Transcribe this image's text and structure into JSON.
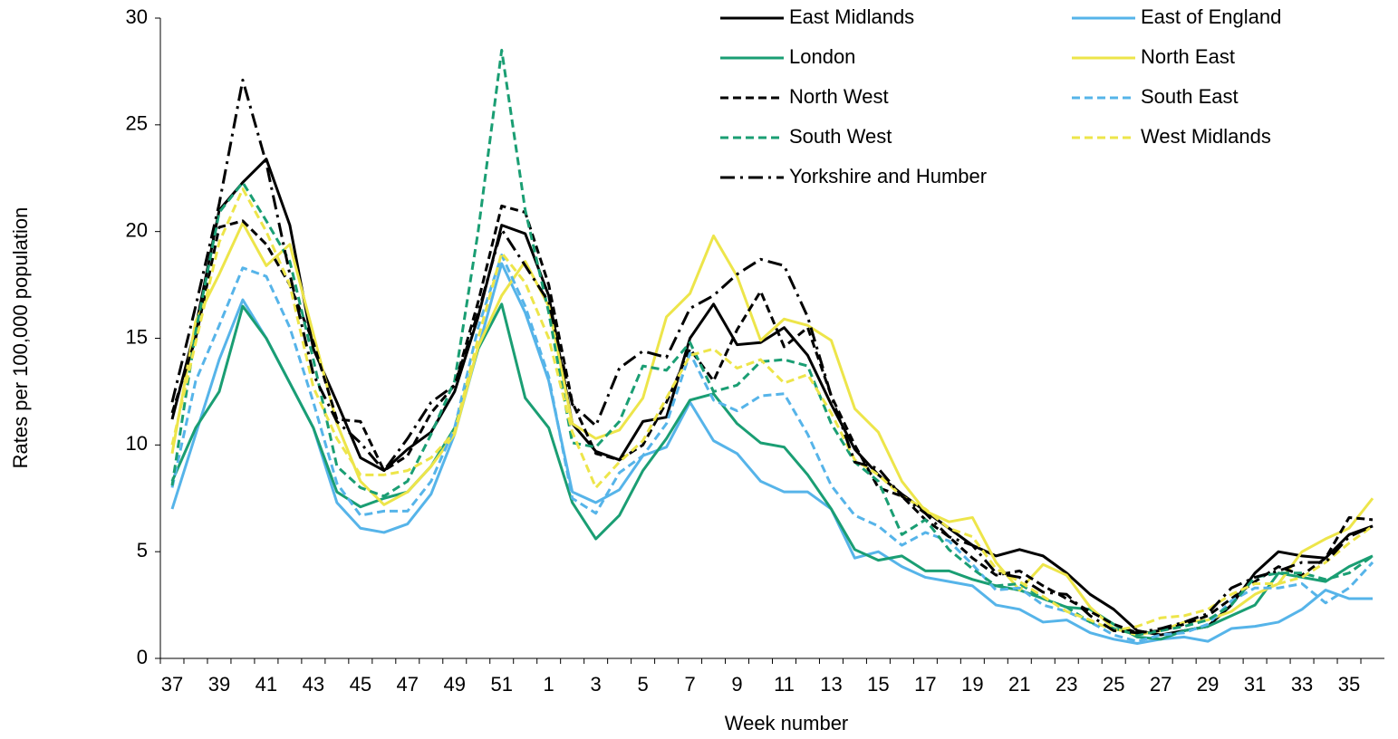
{
  "chart_data": {
    "type": "line",
    "x_label": "Week number",
    "y_label": "Rates per 100,000 population",
    "categories": [
      37,
      null,
      39,
      null,
      41,
      null,
      43,
      null,
      45,
      null,
      47,
      null,
      49,
      null,
      51,
      null,
      1,
      null,
      3,
      null,
      5,
      null,
      7,
      null,
      9,
      null,
      11,
      null,
      13,
      null,
      15,
      null,
      17,
      null,
      19,
      null,
      21,
      null,
      23,
      null,
      25,
      null,
      27,
      null,
      29,
      null,
      31,
      null,
      33,
      null,
      35,
      null
    ],
    "ylim": [
      0,
      30
    ],
    "yticks": [
      0,
      5,
      10,
      15,
      20,
      25,
      30
    ],
    "grid": false,
    "legend": "top-right",
    "series": [
      {
        "name": "East Midlands",
        "color": "#000000",
        "dash": "solid",
        "values": [
          11.2,
          15.5,
          21,
          22.3,
          23.4,
          20.3,
          14.5,
          12,
          9.4,
          8.8,
          9.8,
          10.6,
          12.5,
          16,
          20.3,
          19.9,
          17,
          11,
          9.7,
          9.3,
          11.1,
          11.3,
          15,
          16.6,
          14.7,
          14.8,
          15.5,
          14.2,
          11.9,
          9.8,
          8.6,
          7.7,
          6.9,
          6.1,
          5.3,
          4.8,
          5.1,
          4.8,
          4,
          3,
          2.3,
          1.3,
          1.1,
          1.3,
          1.5,
          2.5,
          4,
          5,
          4.8,
          4.7,
          5.8,
          6.2
        ]
      },
      {
        "name": "East of England",
        "color": "#56b4e9",
        "dash": "solid",
        "values": [
          7,
          10.5,
          14,
          16.8,
          15,
          12.9,
          10.8,
          7.3,
          6.1,
          5.9,
          6.3,
          7.7,
          10.5,
          14.5,
          18.5,
          16.2,
          13,
          7.8,
          7.3,
          7.9,
          9.5,
          9.9,
          12,
          10.2,
          9.6,
          8.3,
          7.8,
          7.8,
          7,
          4.7,
          5,
          4.3,
          3.8,
          3.6,
          3.4,
          2.5,
          2.3,
          1.7,
          1.8,
          1.2,
          0.9,
          0.7,
          0.9,
          1,
          0.8,
          1.4,
          1.5,
          1.7,
          2.3,
          3.2,
          2.8,
          2.8
        ]
      },
      {
        "name": "London",
        "color": "#1a9e73",
        "dash": "solid",
        "values": [
          8.3,
          10.8,
          12.5,
          16.5,
          15,
          12.9,
          10.8,
          7.8,
          7.1,
          7.5,
          7.8,
          9,
          10.8,
          14.5,
          16.6,
          12.2,
          10.8,
          7.3,
          5.6,
          6.7,
          8.8,
          10.3,
          12.1,
          12.4,
          11,
          10.1,
          9.9,
          8.6,
          7,
          5.1,
          4.6,
          4.8,
          4.1,
          4.1,
          3.7,
          3.4,
          3.2,
          2.8,
          2.4,
          2.3,
          1.6,
          1,
          0.9,
          1.3,
          1.5,
          2,
          2.5,
          4,
          3.8,
          3.6,
          4.3,
          4.8
        ]
      },
      {
        "name": "North East",
        "color": "#ede54a",
        "dash": "solid",
        "values": [
          9.6,
          15.8,
          18,
          20.4,
          18.4,
          19.4,
          15.2,
          11,
          8.3,
          7.2,
          7.8,
          9,
          10.5,
          14.6,
          17,
          18.6,
          16.5,
          11,
          10.3,
          10.7,
          12.2,
          16,
          17.1,
          19.8,
          17.9,
          14.9,
          15.9,
          15.6,
          14.9,
          11.7,
          10.6,
          8.3,
          6.9,
          6.4,
          6.6,
          4.5,
          3.2,
          4.4,
          3.9,
          2.4,
          1.4,
          1.1,
          1.3,
          1.7,
          1.8,
          2.2,
          3,
          3.5,
          5,
          5.6,
          6.1,
          7.5
        ]
      },
      {
        "name": "North West",
        "color": "#000000",
        "dash": "dashed",
        "values": [
          11.5,
          15,
          20.2,
          20.5,
          19.4,
          17.5,
          14.8,
          11.2,
          11.1,
          8.8,
          9.5,
          11.5,
          12.8,
          16.7,
          21.2,
          20.9,
          17.5,
          12,
          9.6,
          9.3,
          10,
          12,
          14.5,
          13,
          15.4,
          17.2,
          14.6,
          15.5,
          12.3,
          10,
          8,
          7.6,
          6.5,
          5.7,
          4.7,
          3.9,
          4.1,
          3.4,
          2.8,
          2.2,
          1.6,
          1.2,
          1.3,
          1.6,
          2,
          2.8,
          3.6,
          4.3,
          3.9,
          4.7,
          6.6,
          6.5
        ]
      },
      {
        "name": "South East",
        "color": "#56b4e9",
        "dash": "dashed",
        "values": [
          8,
          13,
          15.6,
          18.3,
          17.9,
          15.5,
          12,
          8.2,
          6.7,
          6.9,
          6.9,
          8.3,
          10.8,
          15.5,
          18.9,
          16.5,
          13.2,
          7.5,
          6.8,
          8.7,
          9.5,
          11,
          14.3,
          12.1,
          11.6,
          12.3,
          12.4,
          10.5,
          8.1,
          6.7,
          6.2,
          5.3,
          5.9,
          5.5,
          4.4,
          3.2,
          3.3,
          2.5,
          2.2,
          1.7,
          1.1,
          0.8,
          1.1,
          1.2,
          1.6,
          2.7,
          3.3,
          3.3,
          3.5,
          2.6,
          3.3,
          4.5
        ]
      },
      {
        "name": "South West",
        "color": "#1a9e73",
        "dash": "dashed",
        "values": [
          8.1,
          15.3,
          20.9,
          22.3,
          20.5,
          18.6,
          14,
          9,
          8,
          7.6,
          8.3,
          10.5,
          13,
          20,
          28.5,
          21,
          16.2,
          10.1,
          9.9,
          11.1,
          13.7,
          13.5,
          14.8,
          12.5,
          12.8,
          13.9,
          14,
          13.7,
          11,
          9.2,
          8.3,
          5.8,
          6.5,
          5.1,
          4.2,
          3.4,
          3.5,
          2.8,
          2.4,
          1.7,
          1.4,
          1.1,
          1.3,
          1.5,
          1.8,
          2.5,
          3.8,
          4,
          4,
          3.7,
          4,
          4.8
        ]
      },
      {
        "name": "West Midlands",
        "color": "#ede54a",
        "dash": "dashed",
        "values": [
          10,
          14.8,
          19.5,
          22,
          20,
          17.5,
          12.7,
          10.3,
          8.6,
          8.6,
          8.8,
          9.4,
          10.6,
          15,
          19,
          17.6,
          15,
          10.6,
          8,
          9.2,
          10.2,
          12.2,
          14.2,
          14.5,
          13.6,
          14,
          12.9,
          13.3,
          11.5,
          9.3,
          8.6,
          7.6,
          7,
          6.1,
          5.7,
          4.2,
          3.6,
          2.9,
          2.2,
          1.8,
          1.3,
          1.5,
          1.9,
          2,
          2.3,
          3,
          3.5,
          3.5,
          3.8,
          4.5,
          5.4,
          6.2
        ]
      },
      {
        "name": "Yorkshire and Humber",
        "color": "#000000",
        "dash": "dashdot",
        "values": [
          12,
          16.5,
          21.3,
          27.1,
          23.2,
          18,
          13.3,
          11.1,
          10.1,
          8.8,
          10.3,
          12,
          12.8,
          16.2,
          20.1,
          18.4,
          16.7,
          11.9,
          10.9,
          13.6,
          14.4,
          14.1,
          16.4,
          17,
          18,
          18.7,
          18.4,
          16,
          12.3,
          9.2,
          8.9,
          7.6,
          6.8,
          5.7,
          5.3,
          4,
          3.8,
          3.1,
          3,
          2,
          1.3,
          1.2,
          1.4,
          1.7,
          2.1,
          3.3,
          3.8,
          4.1,
          4.5,
          4.5,
          5.7,
          6.2
        ]
      }
    ]
  }
}
